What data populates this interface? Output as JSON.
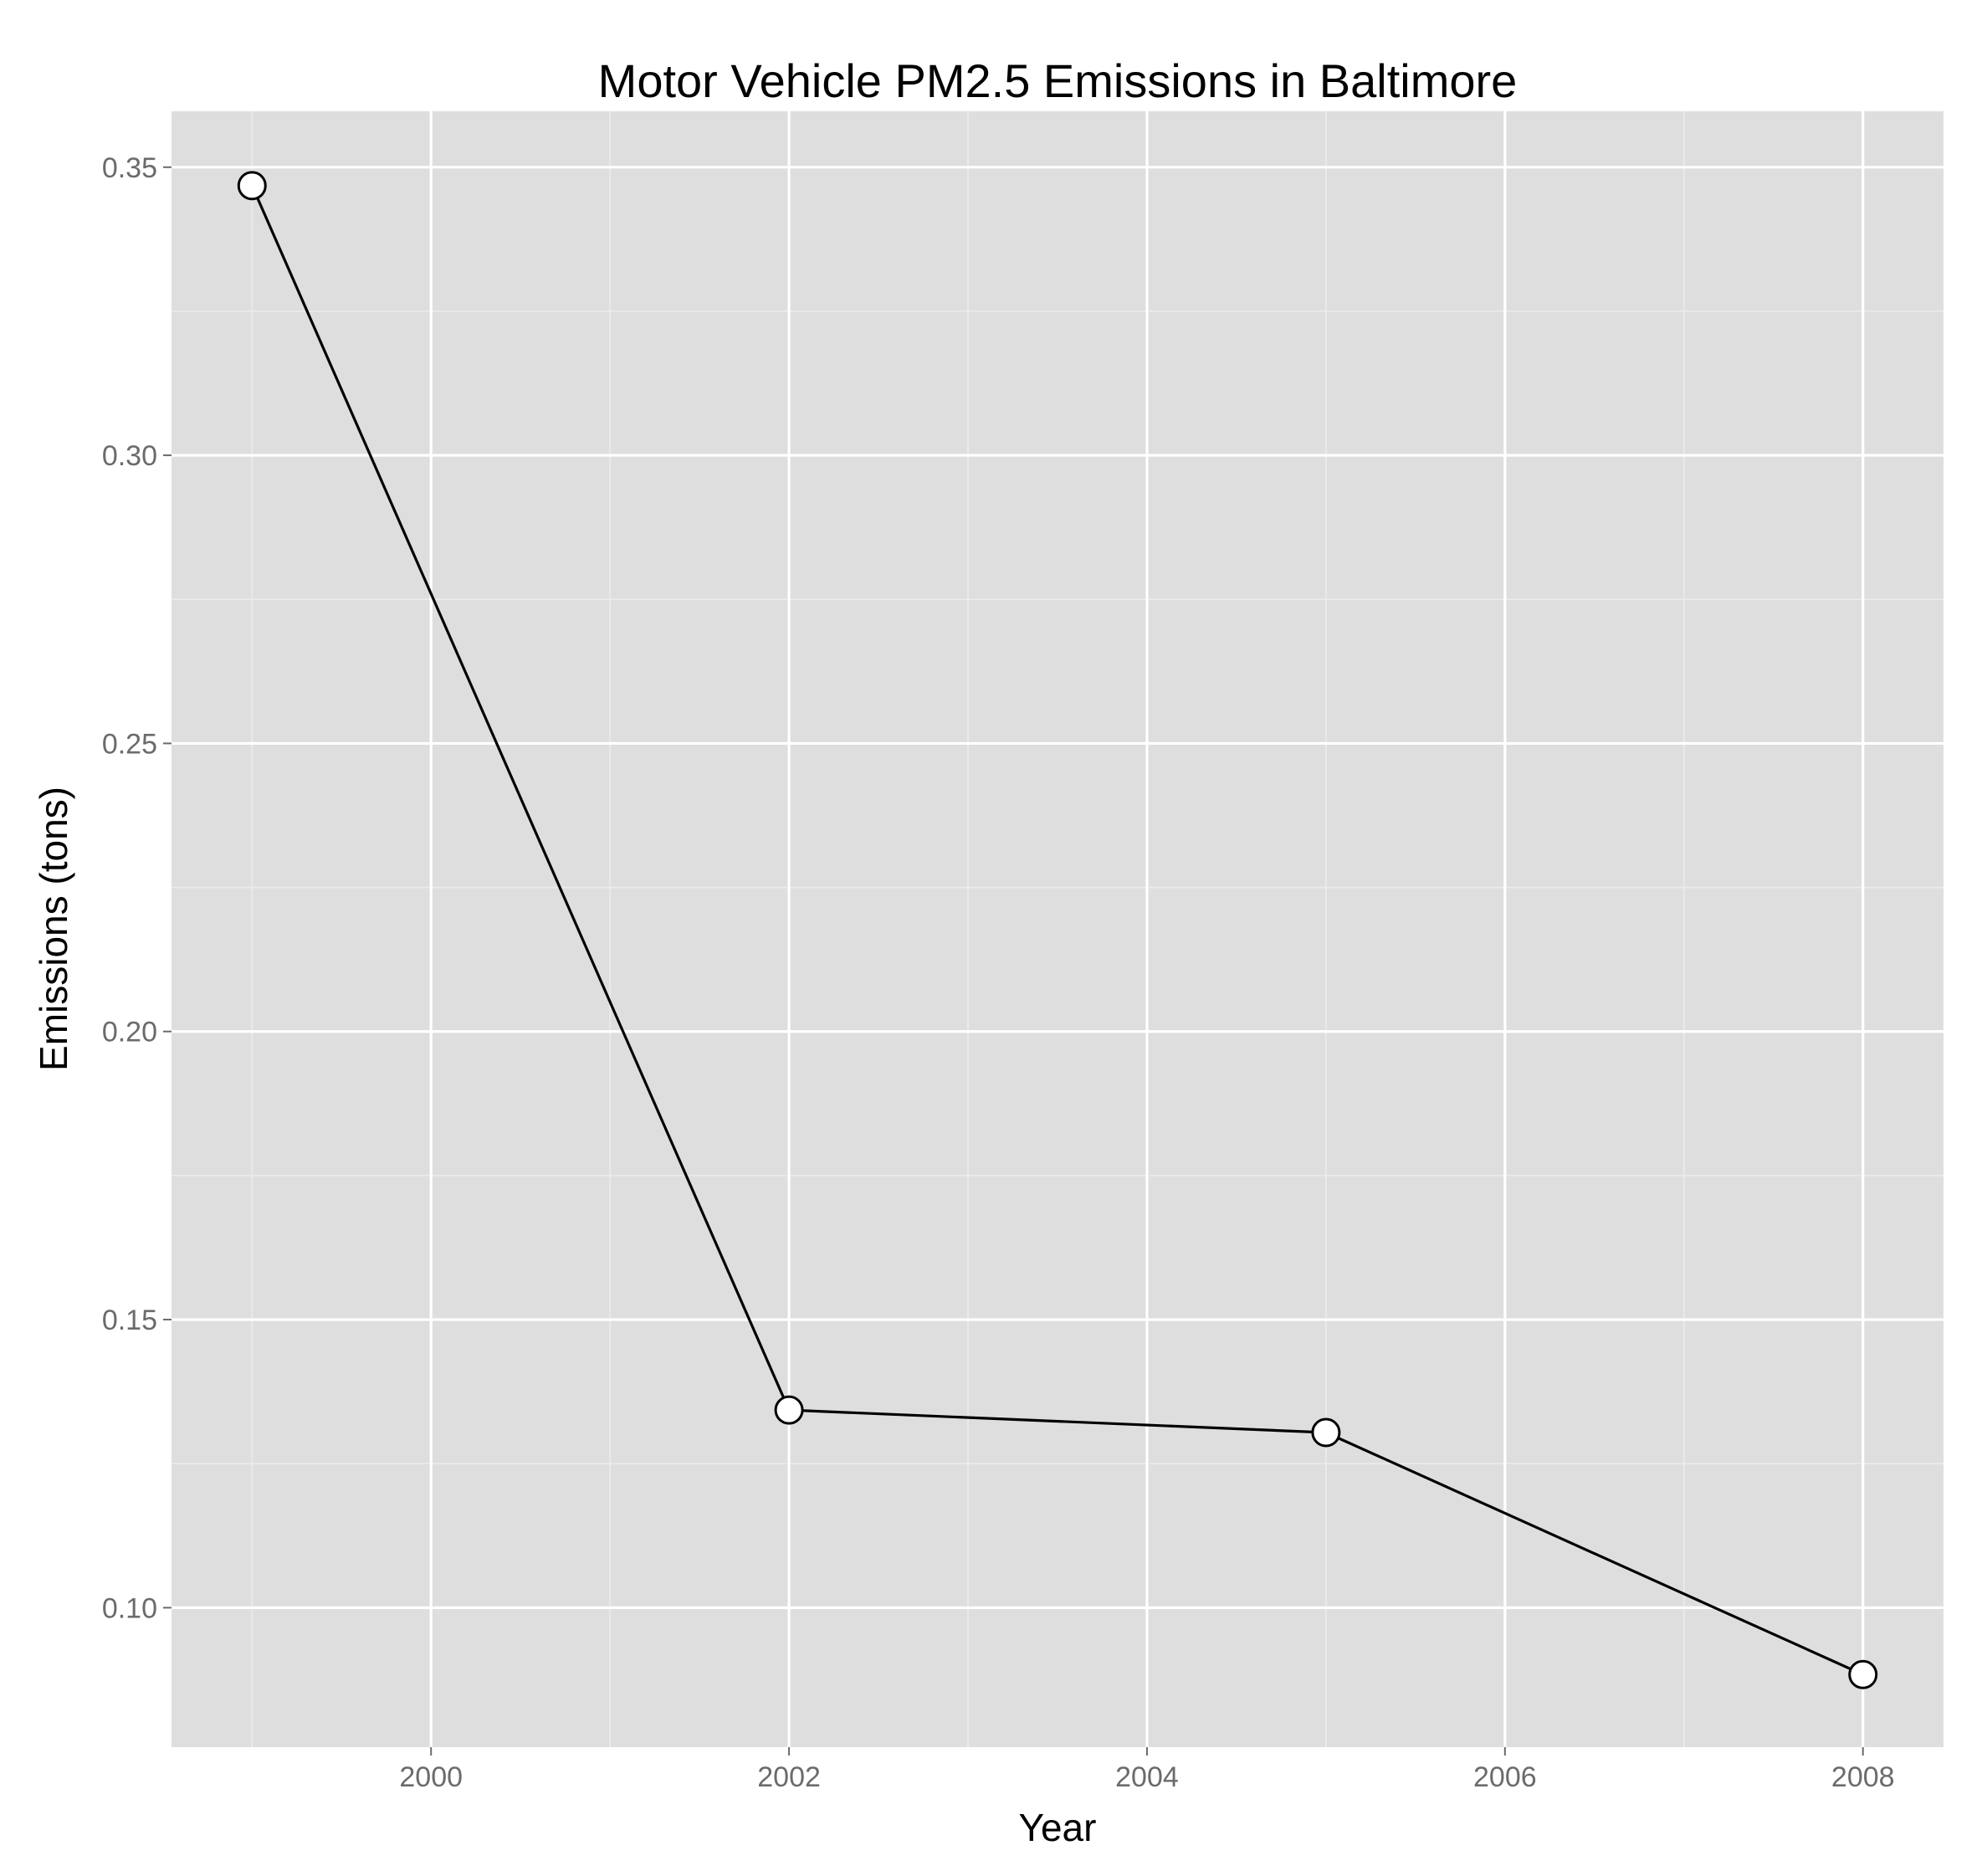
{
  "chart_data": {
    "type": "line",
    "title": "Motor Vehicle PM2.5 Emissions in Baltimore",
    "xlabel": "Year",
    "ylabel": "Emissions (tons)",
    "x": [
      1999,
      2002,
      2005,
      2008
    ],
    "series": [
      {
        "values": [
          0.3468,
          0.1343,
          0.1304,
          0.0884
        ]
      }
    ],
    "xlim": [
      1998.55,
      2008.45
    ],
    "ylim": [
      0.0758,
      0.3597
    ],
    "xticks": [
      2000,
      2002,
      2004,
      2006,
      2008
    ],
    "xtick_labels": [
      "2000",
      "2002",
      "2004",
      "2006",
      "2008"
    ],
    "yticks": [
      0.1,
      0.15,
      0.2,
      0.25,
      0.3,
      0.35
    ],
    "ytick_labels": [
      "0.10",
      "0.15",
      "0.20",
      "0.25",
      "0.30",
      "0.35"
    ],
    "grid": true,
    "colors": {
      "panel_background": "#dedede",
      "grid_major": "#ffffff",
      "grid_minor": "#ececec",
      "line": "#000000",
      "point_fill": "#ffffff",
      "point_stroke": "#000000"
    }
  }
}
